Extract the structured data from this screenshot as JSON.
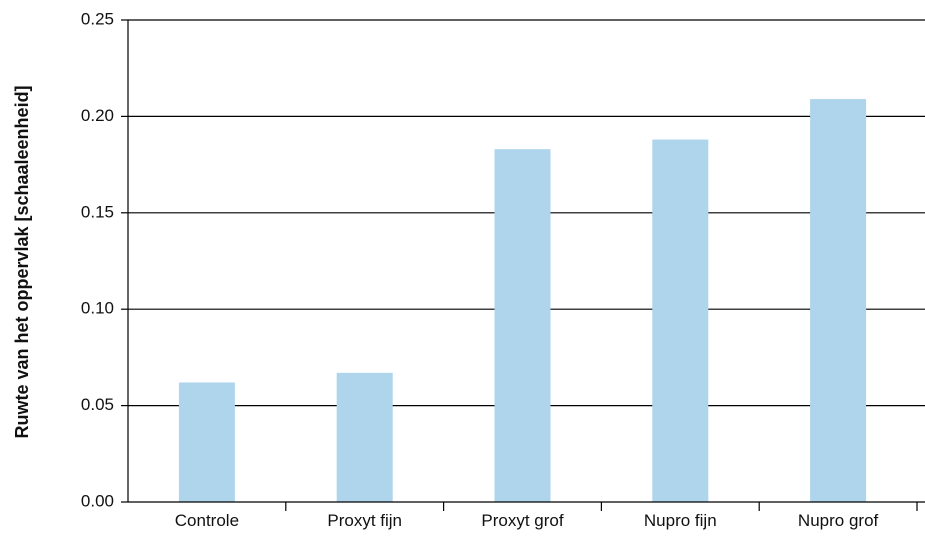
{
  "chart_data": {
    "type": "bar",
    "title": "",
    "xlabel": "",
    "ylabel": "Ruwte van het oppervlak [schaaleenheid]",
    "categories": [
      "Controle",
      "Proxyt fijn",
      "Proxyt grof",
      "Nupro fijn",
      "Nupro grof"
    ],
    "values": [
      0.062,
      0.067,
      0.183,
      0.188,
      0.209
    ],
    "ylim": [
      0,
      0.25
    ],
    "yticks": [
      "0.00",
      "0.05",
      "0.10",
      "0.15",
      "0.20",
      "0.25"
    ],
    "grid": true,
    "bar_color": "#aed5ec",
    "grid_color": "#000000"
  }
}
